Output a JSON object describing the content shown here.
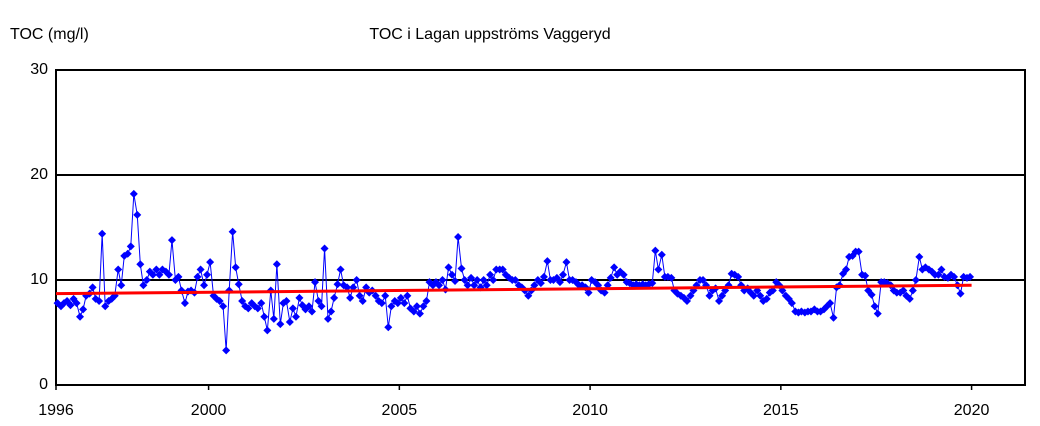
{
  "chart_data": {
    "type": "line",
    "title": "TOC i Lagan uppströms Vaggeryd",
    "y_label": "TOC (mg/l)",
    "xlim": [
      1996,
      2021.4
    ],
    "xticks": [
      1996,
      2000,
      2005,
      2010,
      2015,
      2020
    ],
    "ylim": [
      0,
      30
    ],
    "yticks": [
      0,
      10,
      20,
      30
    ],
    "grid": true,
    "series": [
      {
        "color": "#0000ff",
        "marker": "diamond",
        "x": [
          1996.04,
          1996.13,
          1996.21,
          1996.29,
          1996.38,
          1996.46,
          1996.54,
          1996.63,
          1996.71,
          1996.79,
          1996.88,
          1996.96,
          1997.04,
          1997.13,
          1997.21,
          1997.29,
          1997.38,
          1997.46,
          1997.54,
          1997.63,
          1997.71,
          1997.79,
          1997.88,
          1997.96,
          1998.04,
          1998.13,
          1998.21,
          1998.29,
          1998.38,
          1998.46,
          1998.54,
          1998.63,
          1998.71,
          1998.79,
          1998.88,
          1998.96,
          1999.04,
          1999.13,
          1999.21,
          1999.29,
          1999.38,
          1999.46,
          1999.54,
          1999.63,
          1999.71,
          1999.79,
          1999.88,
          1999.96,
          2000.04,
          2000.13,
          2000.21,
          2000.29,
          2000.38,
          2000.46,
          2000.54,
          2000.63,
          2000.71,
          2000.79,
          2000.88,
          2000.96,
          2001.04,
          2001.13,
          2001.21,
          2001.29,
          2001.38,
          2001.46,
          2001.54,
          2001.63,
          2001.71,
          2001.79,
          2001.88,
          2001.96,
          2002.04,
          2002.13,
          2002.21,
          2002.29,
          2002.38,
          2002.46,
          2002.54,
          2002.63,
          2002.71,
          2002.79,
          2002.88,
          2002.96,
          2003.04,
          2003.13,
          2003.21,
          2003.29,
          2003.38,
          2003.46,
          2003.54,
          2003.63,
          2003.71,
          2003.79,
          2003.88,
          2003.96,
          2004.04,
          2004.13,
          2004.21,
          2004.29,
          2004.38,
          2004.46,
          2004.54,
          2004.63,
          2004.71,
          2004.79,
          2004.88,
          2004.96,
          2005.04,
          2005.13,
          2005.21,
          2005.29,
          2005.38,
          2005.46,
          2005.54,
          2005.63,
          2005.71,
          2005.79,
          2005.88,
          2005.96,
          2006.04,
          2006.13,
          2006.21,
          2006.29,
          2006.38,
          2006.46,
          2006.54,
          2006.63,
          2006.71,
          2006.79,
          2006.88,
          2006.96,
          2007.04,
          2007.13,
          2007.21,
          2007.29,
          2007.38,
          2007.46,
          2007.54,
          2007.63,
          2007.71,
          2007.79,
          2007.88,
          2007.96,
          2008.04,
          2008.13,
          2008.21,
          2008.29,
          2008.38,
          2008.46,
          2008.54,
          2008.63,
          2008.71,
          2008.79,
          2008.88,
          2008.96,
          2009.04,
          2009.13,
          2009.21,
          2009.29,
          2009.38,
          2009.46,
          2009.54,
          2009.63,
          2009.71,
          2009.79,
          2009.88,
          2009.96,
          2010.04,
          2010.13,
          2010.21,
          2010.29,
          2010.38,
          2010.46,
          2010.54,
          2010.63,
          2010.71,
          2010.79,
          2010.88,
          2010.96,
          2011.04,
          2011.13,
          2011.21,
          2011.29,
          2011.38,
          2011.46,
          2011.54,
          2011.63,
          2011.71,
          2011.79,
          2011.88,
          2011.96,
          2012.04,
          2012.13,
          2012.21,
          2012.29,
          2012.38,
          2012.46,
          2012.54,
          2012.63,
          2012.71,
          2012.79,
          2012.88,
          2012.96,
          2013.04,
          2013.13,
          2013.21,
          2013.29,
          2013.38,
          2013.46,
          2013.54,
          2013.63,
          2013.71,
          2013.79,
          2013.88,
          2013.96,
          2014.04,
          2014.13,
          2014.21,
          2014.29,
          2014.38,
          2014.46,
          2014.54,
          2014.63,
          2014.71,
          2014.79,
          2014.88,
          2014.96,
          2015.04,
          2015.13,
          2015.21,
          2015.29,
          2015.38,
          2015.46,
          2015.54,
          2015.63,
          2015.71,
          2015.79,
          2015.88,
          2015.96,
          2016.04,
          2016.13,
          2016.21,
          2016.29,
          2016.38,
          2016.46,
          2016.54,
          2016.63,
          2016.71,
          2016.79,
          2016.88,
          2016.96,
          2017.04,
          2017.13,
          2017.21,
          2017.29,
          2017.38,
          2017.46,
          2017.54,
          2017.63,
          2017.71,
          2017.79,
          2017.88,
          2017.96,
          2018.04,
          2018.13,
          2018.21,
          2018.29,
          2018.38,
          2018.46,
          2018.54,
          2018.63,
          2018.71,
          2018.79,
          2018.88,
          2018.96,
          2019.04,
          2019.13,
          2019.21,
          2019.29,
          2019.38,
          2019.46,
          2019.54,
          2019.63,
          2019.71,
          2019.79,
          2019.88,
          2019.96
        ],
        "values": [
          7.8,
          7.5,
          7.8,
          8,
          7.6,
          8.2,
          7.8,
          6.5,
          7.2,
          8.5,
          8.7,
          9.3,
          8.2,
          8,
          14.4,
          7.5,
          8,
          8.2,
          8.5,
          11,
          9.5,
          12.3,
          12.5,
          13.2,
          18.2,
          16.2,
          11.5,
          9.5,
          10,
          10.8,
          10.5,
          11,
          10.5,
          11,
          10.8,
          10.5,
          13.8,
          10,
          10.3,
          9,
          7.8,
          8.9,
          9,
          8.8,
          10.3,
          11,
          9.5,
          10.5,
          11.7,
          8.5,
          8.2,
          8,
          7.5,
          3.3,
          9,
          14.6,
          11.2,
          9.6,
          8,
          7.5,
          7.3,
          7.8,
          7.5,
          7.3,
          7.8,
          6.5,
          5.2,
          9,
          6.3,
          11.5,
          5.8,
          7.8,
          8,
          6,
          7.3,
          6.5,
          8.3,
          7.6,
          7.2,
          7.5,
          7,
          9.8,
          8,
          7.5,
          13,
          6.3,
          7,
          8.3,
          9.6,
          11,
          9.5,
          9.3,
          8.3,
          9.3,
          10,
          8.5,
          8,
          9.3,
          8.8,
          9,
          8.5,
          8,
          7.8,
          8.5,
          5.5,
          7.5,
          8,
          7.8,
          8.3,
          7.8,
          8.5,
          7.3,
          7,
          7.5,
          6.8,
          7.5,
          8,
          9.8,
          9.5,
          9.8,
          9.5,
          10,
          9.1,
          11.2,
          10.5,
          9.9,
          14.1,
          11.1,
          10,
          9.5,
          10.2,
          9.5,
          10,
          9.3,
          10,
          9.5,
          10.5,
          10,
          11,
          11,
          11,
          10.5,
          10.2,
          10,
          10,
          9.5,
          9.3,
          9,
          8.5,
          9,
          9.5,
          10,
          9.7,
          10.3,
          11.8,
          10,
          10,
          10.2,
          9.8,
          10.5,
          11.7,
          10,
          10,
          9.8,
          9.5,
          9.5,
          9.3,
          8.8,
          10,
          9.8,
          9.5,
          9,
          8.8,
          9.5,
          10.2,
          11.2,
          10.5,
          10.8,
          10.5,
          9.8,
          9.7,
          9.5,
          9.6,
          9.5,
          9.6,
          9.5,
          9.6,
          9.7,
          12.8,
          11,
          12.4,
          10.3,
          10.3,
          10.2,
          9,
          8.7,
          8.5,
          8.3,
          8,
          8.5,
          9,
          9.5,
          10,
          10,
          9.5,
          8.5,
          9,
          9.2,
          8,
          8.5,
          9,
          9.5,
          10.6,
          10.5,
          10.3,
          9.5,
          9,
          9.2,
          8.8,
          8.5,
          9,
          8.5,
          8,
          8.2,
          8.8,
          9,
          9.8,
          9.5,
          9,
          8.5,
          8.2,
          7.8,
          7,
          6.9,
          7,
          6.9,
          7,
          7,
          7.2,
          7,
          7,
          7.2,
          7.5,
          7.8,
          6.4,
          9.3,
          9.5,
          10.6,
          11,
          12.2,
          12.3,
          12.7,
          12.7,
          10.5,
          10.4,
          9,
          8.6,
          7.5,
          6.8,
          9.8,
          9.8,
          9.7,
          9.5,
          9,
          8.8,
          8.8,
          9,
          8.5,
          8.2,
          9,
          10,
          12.2,
          11,
          11.2,
          11,
          10.8,
          10.5,
          10.5,
          11,
          10.3,
          10.2,
          10.5,
          10.3,
          9.5,
          8.7,
          10.3,
          10.2,
          10.3
        ]
      },
      {
        "color": "#ff0000",
        "marker": "none",
        "x": [
          1996,
          2020
        ],
        "values": [
          8.7,
          9.5
        ]
      }
    ]
  }
}
